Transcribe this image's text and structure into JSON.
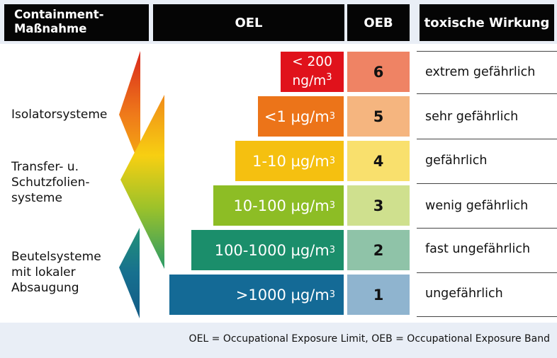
{
  "headers": {
    "containment_line1": "Containment-",
    "containment_line2": "Maßnahme",
    "oel": "OEL",
    "oeb": "OEB",
    "toxic": "toxische Wirkung"
  },
  "measures": [
    {
      "lines": [
        "Isolatorsysteme"
      ]
    },
    {
      "lines": [
        "Transfer- u.",
        "Schutzfolien-",
        "systeme"
      ]
    },
    {
      "lines": [
        "Beutelsysteme",
        "mit lokaler",
        "Absaugung"
      ]
    }
  ],
  "rows": [
    {
      "oel_top": "< 200",
      "oel_bottom": "ng/m",
      "oel_sup": "3",
      "oeb": "6",
      "effect": "extrem gefährlich",
      "oel_color": "#e0121b",
      "oeb_color": "#ef8364"
    },
    {
      "oel": "<1 µg/m",
      "oel_sup": "3",
      "oeb": "5",
      "effect": "sehr gefährlich",
      "oel_color": "#ec7419",
      "oeb_color": "#f5b57f"
    },
    {
      "oel": "1-10 µg/m",
      "oel_sup": "3",
      "oeb": "4",
      "effect": "gefährlich",
      "oel_color": "#f5c010",
      "oeb_color": "#f9e06d"
    },
    {
      "oel": "10-100 µg/m",
      "oel_sup": "3",
      "oeb": "3",
      "effect": "wenig gefährlich",
      "oel_color": "#8dbd25",
      "oeb_color": "#cfe08e"
    },
    {
      "oel": "100-1000 µg/m",
      "oel_sup": "3",
      "oeb": "2",
      "effect": "fast ungefährlich",
      "oel_color": "#1b8e6b",
      "oeb_color": "#8fc3a8"
    },
    {
      "oel": ">1000 µg/m",
      "oel_sup": "3",
      "oeb": "1",
      "effect": "ungefährlich",
      "oel_color": "#146a96",
      "oeb_color": "#8fb4cf"
    }
  ],
  "footnote": "OEL = Occupational Exposure Limit, OEB = Occupational Exposure Band"
}
